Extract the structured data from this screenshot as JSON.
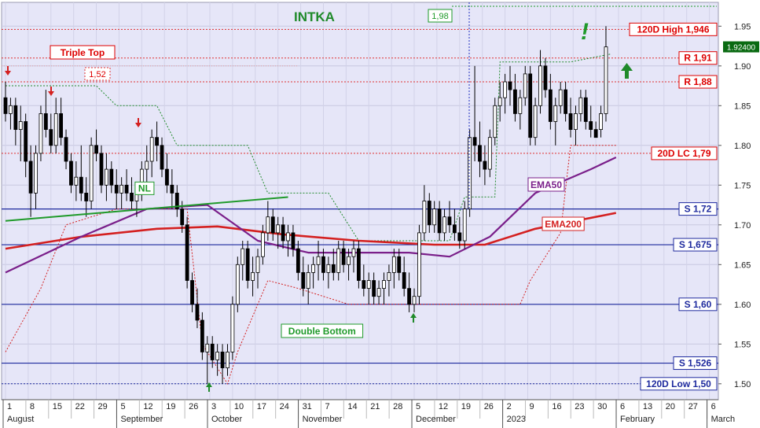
{
  "chart_data": {
    "type": "candlestick",
    "title": "INTKA",
    "y_axis": {
      "side": "right",
      "range": [
        1.48,
        1.98
      ],
      "ticks": [
        1.5,
        1.55,
        1.6,
        1.65,
        1.7,
        1.75,
        1.8,
        1.85,
        1.9,
        1.95
      ],
      "tick_labels": [
        "1.50",
        "1.55",
        "1.60",
        "1.65",
        "1.70",
        "1.75",
        "1.80",
        "1.85",
        "1.90",
        "1.95"
      ]
    },
    "x_axis": {
      "day_labels": [
        "1",
        "8",
        "15",
        "22",
        "29",
        "5",
        "12",
        "19",
        "26",
        "3",
        "10",
        "17",
        "24",
        "31",
        "7",
        "14",
        "21",
        "28",
        "5",
        "12",
        "19",
        "26",
        "2",
        "9",
        "16",
        "23",
        "30",
        "6",
        "13",
        "20",
        "27",
        "6"
      ],
      "month_labels": [
        {
          "label": "August",
          "at": 0
        },
        {
          "label": "September",
          "at": 5
        },
        {
          "label": "October",
          "at": 9
        },
        {
          "label": "November",
          "at": 13
        },
        {
          "label": "December",
          "at": 18
        },
        {
          "label": "2023",
          "at": 22
        },
        {
          "label": "February",
          "at": 27
        },
        {
          "label": "March",
          "at": 31
        }
      ]
    },
    "last_price": "1.92400",
    "candles": [
      [
        1.86,
        1.88,
        1.83,
        1.84
      ],
      [
        1.84,
        1.86,
        1.82,
        1.85
      ],
      [
        1.85,
        1.86,
        1.8,
        1.82
      ],
      [
        1.82,
        1.85,
        1.78,
        1.83
      ],
      [
        1.83,
        1.84,
        1.76,
        1.78
      ],
      [
        1.78,
        1.8,
        1.71,
        1.74
      ],
      [
        1.74,
        1.8,
        1.72,
        1.79
      ],
      [
        1.79,
        1.85,
        1.78,
        1.84
      ],
      [
        1.84,
        1.87,
        1.81,
        1.82
      ],
      [
        1.82,
        1.84,
        1.79,
        1.8
      ],
      [
        1.8,
        1.86,
        1.79,
        1.84
      ],
      [
        1.84,
        1.86,
        1.8,
        1.81
      ],
      [
        1.81,
        1.82,
        1.77,
        1.78
      ],
      [
        1.78,
        1.79,
        1.74,
        1.75
      ],
      [
        1.75,
        1.78,
        1.73,
        1.76
      ],
      [
        1.76,
        1.8,
        1.73,
        1.74
      ],
      [
        1.74,
        1.76,
        1.71,
        1.73
      ],
      [
        1.73,
        1.81,
        1.72,
        1.8
      ],
      [
        1.8,
        1.82,
        1.78,
        1.79
      ],
      [
        1.79,
        1.8,
        1.74,
        1.75
      ],
      [
        1.75,
        1.79,
        1.73,
        1.77
      ],
      [
        1.77,
        1.78,
        1.74,
        1.75
      ],
      [
        1.75,
        1.77,
        1.72,
        1.74
      ],
      [
        1.74,
        1.76,
        1.72,
        1.75
      ],
      [
        1.75,
        1.77,
        1.73,
        1.74
      ],
      [
        1.74,
        1.76,
        1.72,
        1.73
      ],
      [
        1.73,
        1.75,
        1.71,
        1.74
      ],
      [
        1.74,
        1.78,
        1.73,
        1.77
      ],
      [
        1.77,
        1.8,
        1.75,
        1.78
      ],
      [
        1.78,
        1.82,
        1.76,
        1.81
      ],
      [
        1.81,
        1.83,
        1.78,
        1.8
      ],
      [
        1.8,
        1.81,
        1.76,
        1.77
      ],
      [
        1.77,
        1.79,
        1.74,
        1.75
      ],
      [
        1.75,
        1.77,
        1.72,
        1.74
      ],
      [
        1.74,
        1.75,
        1.71,
        1.72
      ],
      [
        1.72,
        1.73,
        1.69,
        1.7
      ],
      [
        1.7,
        1.71,
        1.62,
        1.63
      ],
      [
        1.63,
        1.64,
        1.59,
        1.6
      ],
      [
        1.6,
        1.62,
        1.57,
        1.58
      ],
      [
        1.58,
        1.59,
        1.53,
        1.54
      ],
      [
        1.54,
        1.56,
        1.5,
        1.55
      ],
      [
        1.55,
        1.56,
        1.52,
        1.53
      ],
      [
        1.53,
        1.55,
        1.51,
        1.54
      ],
      [
        1.54,
        1.55,
        1.5,
        1.52
      ],
      [
        1.52,
        1.55,
        1.51,
        1.54
      ],
      [
        1.54,
        1.61,
        1.53,
        1.6
      ],
      [
        1.6,
        1.66,
        1.59,
        1.65
      ],
      [
        1.65,
        1.68,
        1.63,
        1.67
      ],
      [
        1.67,
        1.68,
        1.62,
        1.63
      ],
      [
        1.63,
        1.66,
        1.61,
        1.64
      ],
      [
        1.64,
        1.67,
        1.62,
        1.66
      ],
      [
        1.66,
        1.7,
        1.65,
        1.69
      ],
      [
        1.69,
        1.73,
        1.68,
        1.71
      ],
      [
        1.71,
        1.72,
        1.68,
        1.69
      ],
      [
        1.69,
        1.71,
        1.67,
        1.7
      ],
      [
        1.7,
        1.71,
        1.67,
        1.68
      ],
      [
        1.68,
        1.7,
        1.66,
        1.69
      ],
      [
        1.69,
        1.7,
        1.66,
        1.67
      ],
      [
        1.67,
        1.68,
        1.63,
        1.64
      ],
      [
        1.64,
        1.66,
        1.61,
        1.62
      ],
      [
        1.62,
        1.65,
        1.6,
        1.64
      ],
      [
        1.64,
        1.66,
        1.62,
        1.65
      ],
      [
        1.65,
        1.68,
        1.63,
        1.66
      ],
      [
        1.66,
        1.67,
        1.63,
        1.64
      ],
      [
        1.64,
        1.66,
        1.62,
        1.65
      ],
      [
        1.65,
        1.67,
        1.63,
        1.64
      ],
      [
        1.64,
        1.68,
        1.63,
        1.67
      ],
      [
        1.67,
        1.68,
        1.64,
        1.65
      ],
      [
        1.65,
        1.67,
        1.63,
        1.66
      ],
      [
        1.66,
        1.68,
        1.64,
        1.67
      ],
      [
        1.67,
        1.68,
        1.62,
        1.63
      ],
      [
        1.63,
        1.65,
        1.61,
        1.62
      ],
      [
        1.62,
        1.64,
        1.6,
        1.63
      ],
      [
        1.63,
        1.64,
        1.6,
        1.61
      ],
      [
        1.61,
        1.63,
        1.6,
        1.62
      ],
      [
        1.62,
        1.64,
        1.6,
        1.63
      ],
      [
        1.63,
        1.65,
        1.61,
        1.64
      ],
      [
        1.64,
        1.67,
        1.62,
        1.66
      ],
      [
        1.66,
        1.67,
        1.63,
        1.64
      ],
      [
        1.64,
        1.66,
        1.61,
        1.62
      ],
      [
        1.62,
        1.64,
        1.59,
        1.6
      ],
      [
        1.6,
        1.62,
        1.59,
        1.61
      ],
      [
        1.61,
        1.7,
        1.6,
        1.69
      ],
      [
        1.69,
        1.75,
        1.68,
        1.73
      ],
      [
        1.73,
        1.74,
        1.69,
        1.7
      ],
      [
        1.7,
        1.73,
        1.69,
        1.72
      ],
      [
        1.72,
        1.73,
        1.68,
        1.69
      ],
      [
        1.69,
        1.72,
        1.68,
        1.71
      ],
      [
        1.71,
        1.73,
        1.69,
        1.7
      ],
      [
        1.7,
        1.72,
        1.68,
        1.69
      ],
      [
        1.69,
        1.71,
        1.67,
        1.68
      ],
      [
        1.68,
        1.73,
        1.67,
        1.72
      ],
      [
        1.72,
        1.82,
        1.71,
        1.81
      ],
      [
        1.81,
        1.9,
        1.78,
        1.8
      ],
      [
        1.8,
        1.83,
        1.76,
        1.78
      ],
      [
        1.78,
        1.8,
        1.75,
        1.77
      ],
      [
        1.77,
        1.82,
        1.76,
        1.81
      ],
      [
        1.81,
        1.86,
        1.8,
        1.85
      ],
      [
        1.85,
        1.88,
        1.83,
        1.86
      ],
      [
        1.86,
        1.89,
        1.84,
        1.88
      ],
      [
        1.88,
        1.9,
        1.85,
        1.87
      ],
      [
        1.87,
        1.89,
        1.83,
        1.84
      ],
      [
        1.84,
        1.87,
        1.82,
        1.86
      ],
      [
        1.86,
        1.9,
        1.85,
        1.89
      ],
      [
        1.89,
        1.9,
        1.8,
        1.81
      ],
      [
        1.81,
        1.86,
        1.8,
        1.85
      ],
      [
        1.85,
        1.92,
        1.84,
        1.9
      ],
      [
        1.9,
        1.91,
        1.86,
        1.87
      ],
      [
        1.87,
        1.89,
        1.82,
        1.83
      ],
      [
        1.83,
        1.86,
        1.8,
        1.85
      ],
      [
        1.85,
        1.88,
        1.84,
        1.87
      ],
      [
        1.87,
        1.88,
        1.83,
        1.84
      ],
      [
        1.84,
        1.86,
        1.81,
        1.82
      ],
      [
        1.82,
        1.85,
        1.8,
        1.84
      ],
      [
        1.84,
        1.87,
        1.83,
        1.86
      ],
      [
        1.86,
        1.87,
        1.82,
        1.83
      ],
      [
        1.83,
        1.85,
        1.81,
        1.82
      ],
      [
        1.82,
        1.83,
        1.81,
        1.81
      ],
      [
        1.82,
        1.85,
        1.81,
        1.84
      ],
      [
        1.84,
        1.95,
        1.83,
        1.924
      ]
    ],
    "ema50": [
      [
        0,
        1.64
      ],
      [
        15,
        1.685
      ],
      [
        28,
        1.72
      ],
      [
        40,
        1.725
      ],
      [
        50,
        1.68
      ],
      [
        60,
        1.665
      ],
      [
        80,
        1.665
      ],
      [
        88,
        1.66
      ],
      [
        96,
        1.685
      ],
      [
        105,
        1.74
      ],
      [
        116,
        1.77
      ],
      [
        121,
        1.785
      ]
    ],
    "ema200": [
      [
        0,
        1.67
      ],
      [
        15,
        1.685
      ],
      [
        30,
        1.695
      ],
      [
        42,
        1.698
      ],
      [
        55,
        1.688
      ],
      [
        70,
        1.68
      ],
      [
        85,
        1.675
      ],
      [
        95,
        1.675
      ],
      [
        105,
        1.695
      ],
      [
        121,
        1.715
      ]
    ],
    "upper_band": [
      [
        0,
        1.875
      ],
      [
        18,
        1.875
      ],
      [
        22,
        1.85
      ],
      [
        30,
        1.85
      ],
      [
        34,
        1.8
      ],
      [
        48,
        1.8
      ],
      [
        52,
        1.74
      ],
      [
        64,
        1.74
      ],
      [
        70,
        1.68
      ],
      [
        88,
        1.68
      ],
      [
        91,
        1.735
      ],
      [
        97,
        1.735
      ],
      [
        98,
        1.905
      ],
      [
        112,
        1.905
      ],
      [
        120,
        1.915
      ]
    ],
    "lower_band": [
      [
        0,
        1.54
      ],
      [
        7,
        1.62
      ],
      [
        12,
        1.7
      ],
      [
        22,
        1.72
      ],
      [
        36,
        1.72
      ],
      [
        39,
        1.55
      ],
      [
        44,
        1.5
      ],
      [
        46,
        1.54
      ],
      [
        52,
        1.63
      ],
      [
        58,
        1.62
      ],
      [
        68,
        1.6
      ],
      [
        84,
        1.6
      ],
      [
        88,
        1.6
      ],
      [
        102,
        1.6
      ],
      [
        104,
        1.63
      ],
      [
        110,
        1.69
      ],
      [
        112,
        1.8
      ],
      [
        121,
        1.8
      ]
    ],
    "horizontal_lines": [
      {
        "name": "120d-high",
        "value": 1.946,
        "style": "dotted",
        "color": "#e03030",
        "label": "120D High 1,946",
        "label_color": "#dd0000"
      },
      {
        "name": "r-191",
        "value": 1.91,
        "style": "dotted",
        "color": "#e03030",
        "label": "R 1,91",
        "label_color": "#dd0000"
      },
      {
        "name": "r-188",
        "value": 1.88,
        "style": "dotted",
        "color": "#e03030",
        "label": "R 1,88",
        "label_color": "#dd0000"
      },
      {
        "name": "20d-lc",
        "value": 1.79,
        "style": "dotted",
        "color": "#e03030",
        "label": "20D LC 1,79",
        "label_color": "#dd0000"
      },
      {
        "name": "s-172",
        "value": 1.72,
        "style": "solid",
        "color": "#1e2a9e",
        "label": "S 1,72",
        "label_color": "#1e2a9e"
      },
      {
        "name": "s-1675",
        "value": 1.675,
        "style": "solid",
        "color": "#1e2a9e",
        "label": "S 1,675",
        "label_color": "#1e2a9e"
      },
      {
        "name": "s-160",
        "value": 1.6,
        "style": "solid",
        "color": "#1e2a9e",
        "label": "S 1,60",
        "label_color": "#1e2a9e"
      },
      {
        "name": "s-1526",
        "value": 1.526,
        "style": "solid",
        "color": "#1e2a9e",
        "label": "S 1,526",
        "label_color": "#1e2a9e"
      },
      {
        "name": "120d-low",
        "value": 1.5,
        "style": "dotted",
        "color": "#1e2a9e",
        "label": "120D Low 1,50",
        "label_color": "#1e2a9e"
      }
    ],
    "neckline": {
      "label": "NL",
      "from": [
        0,
        1.705
      ],
      "to": [
        56,
        1.735
      ]
    },
    "annotations": {
      "triple_top": "Triple Top",
      "double_bottom": "Double Bottom",
      "target_152": "1,52",
      "target_198": "1,98",
      "ema50": "EMA50",
      "ema200": "EMA200",
      "exclamation": "!"
    },
    "colors": {
      "background": "#e6e6f8",
      "up_candle": "#ffffff",
      "down_candle": "#000000",
      "ema50": "#7a1f8a",
      "ema200": "#d42020",
      "neckline": "#1f9a2a",
      "band": "#1f8a2a",
      "red_arrow": "#d42020",
      "green_arrow": "#1f8a2a",
      "title": "#1f8a2a"
    }
  }
}
